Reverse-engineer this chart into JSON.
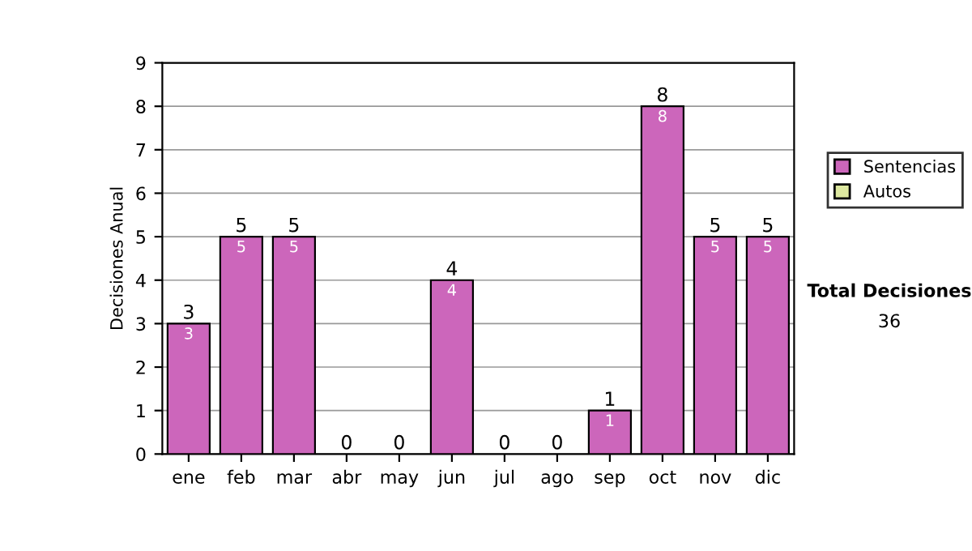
{
  "chart_data": {
    "type": "bar",
    "stacked": true,
    "ylabel": "Decisiones Anual",
    "categories": [
      "ene",
      "feb",
      "mar",
      "abr",
      "may",
      "jun",
      "jul",
      "ago",
      "sep",
      "oct",
      "nov",
      "dic"
    ],
    "series": [
      {
        "name": "Sentencias",
        "color": "#cc66bb",
        "values": [
          3,
          5,
          5,
          0,
          0,
          4,
          0,
          0,
          1,
          8,
          5,
          5
        ],
        "value_labels": [
          "3",
          "5",
          "5",
          null,
          null,
          "4",
          null,
          null,
          "1",
          "8",
          "5",
          "5"
        ]
      },
      {
        "name": "Autos",
        "color": "#dde8a0",
        "values": [
          0,
          0,
          0,
          0,
          0,
          0,
          0,
          0,
          0,
          0,
          0,
          0
        ]
      }
    ],
    "totals": [
      "3",
      "5",
      "5",
      "0",
      "0",
      "4",
      "0",
      "0",
      "1",
      "8",
      "5",
      "5"
    ],
    "ylim": [
      0,
      9
    ],
    "yticks": [
      0,
      1,
      2,
      3,
      4,
      5,
      6,
      7,
      8,
      9
    ],
    "grid": "y",
    "legend": "right",
    "annotations": [
      "Total Decisiones",
      "36"
    ]
  }
}
